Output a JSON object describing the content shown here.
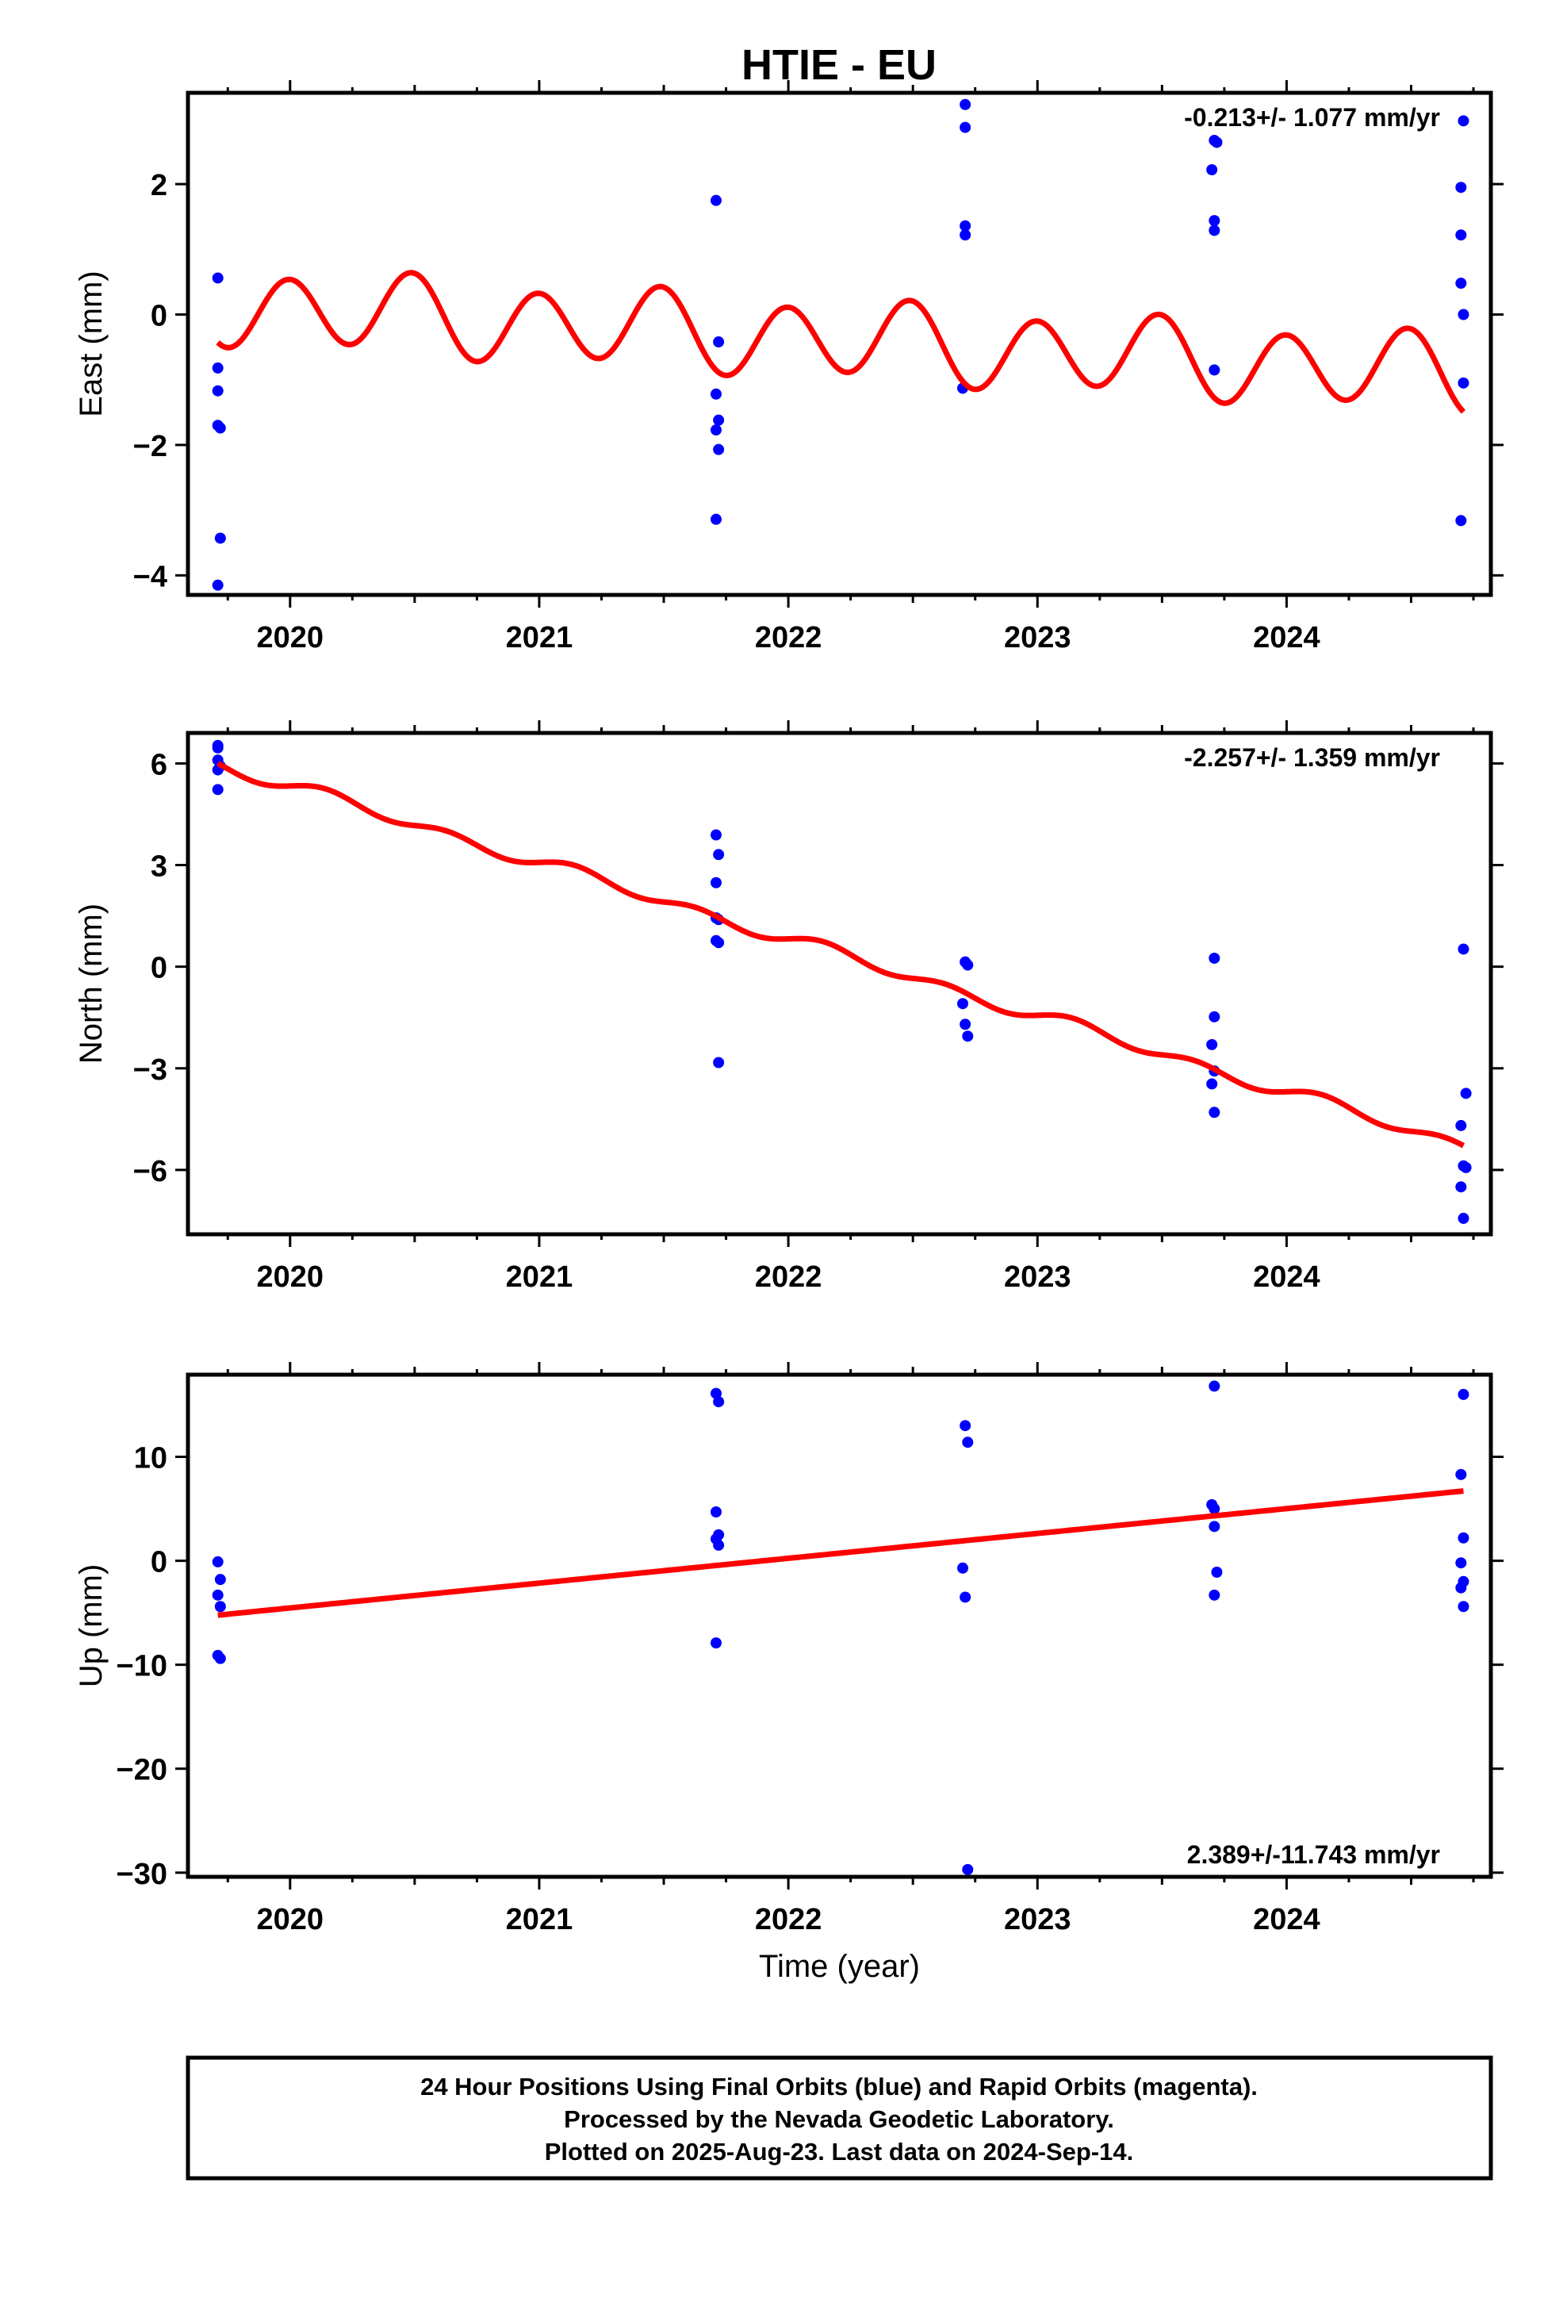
{
  "title": "HTIE - EU",
  "colors": {
    "points": "#0000ff",
    "fit": "#ff0000",
    "frame": "#000000"
  },
  "footer": {
    "lines": [
      "24 Hour Positions Using Final Orbits (blue) and Rapid Orbits (magenta).",
      "Processed by the Nevada Geodetic Laboratory.",
      "Plotted on 2025-Aug-23. Last data on 2024-Sep-14."
    ]
  },
  "chart_data": [
    {
      "type": "scatter",
      "name": "east",
      "ylabel": "East (mm)",
      "xlabel": "",
      "xlim": [
        2019.59,
        2024.82
      ],
      "ylim": [
        -4.3,
        3.4
      ],
      "xticks": [
        2020,
        2021,
        2022,
        2023,
        2024
      ],
      "yticks": [
        -4,
        -2,
        0,
        2
      ],
      "ytick_labels": [
        "−4",
        "−2",
        "0",
        "2"
      ],
      "rate_label": "-0.213+/- 1.077 mm/yr",
      "points": [
        [
          2019.71,
          0.56
        ],
        [
          2019.71,
          -0.82
        ],
        [
          2019.71,
          -1.17
        ],
        [
          2019.71,
          -1.7
        ],
        [
          2019.72,
          -1.74
        ],
        [
          2019.72,
          -3.43
        ],
        [
          2019.71,
          -4.15
        ],
        [
          2021.71,
          1.75
        ],
        [
          2021.72,
          -0.42
        ],
        [
          2021.71,
          -1.22
        ],
        [
          2021.72,
          -1.62
        ],
        [
          2021.71,
          -1.77
        ],
        [
          2021.72,
          -2.07
        ],
        [
          2021.71,
          -3.14
        ],
        [
          2022.71,
          3.22
        ],
        [
          2022.71,
          2.87
        ],
        [
          2022.71,
          1.36
        ],
        [
          2022.71,
          1.22
        ],
        [
          2022.7,
          -1.13
        ],
        [
          2023.71,
          2.67
        ],
        [
          2023.72,
          2.64
        ],
        [
          2023.7,
          2.22
        ],
        [
          2023.71,
          1.44
        ],
        [
          2023.71,
          1.29
        ],
        [
          2023.71,
          -0.85
        ],
        [
          2024.71,
          2.97
        ],
        [
          2024.7,
          1.95
        ],
        [
          2024.7,
          1.22
        ],
        [
          2024.7,
          0.48
        ],
        [
          2024.71,
          0.0
        ],
        [
          2024.71,
          -1.05
        ],
        [
          2024.7,
          -3.16
        ]
      ],
      "fit": {
        "x_start": 2019.71,
        "x_end": 2024.71,
        "intercept": 0.14,
        "slope": -0.213,
        "h1_sin": 0.08,
        "h1_cos": -0.1,
        "h2_sin": -0.05,
        "h2_cos": 0.56
      }
    },
    {
      "type": "scatter",
      "name": "north",
      "ylabel": "North (mm)",
      "xlabel": "",
      "xlim": [
        2019.59,
        2024.82
      ],
      "ylim": [
        -7.9,
        6.9
      ],
      "xticks": [
        2020,
        2021,
        2022,
        2023,
        2024
      ],
      "yticks": [
        -6,
        -3,
        0,
        3,
        6
      ],
      "ytick_labels": [
        "−6",
        "−3",
        "0",
        "3",
        "6"
      ],
      "rate_label": "-2.257+/- 1.359 mm/yr",
      "points": [
        [
          2019.71,
          6.53
        ],
        [
          2019.71,
          6.46
        ],
        [
          2019.71,
          6.1
        ],
        [
          2019.72,
          5.92
        ],
        [
          2019.71,
          5.81
        ],
        [
          2019.71,
          5.23
        ],
        [
          2021.71,
          3.89
        ],
        [
          2021.72,
          3.31
        ],
        [
          2021.71,
          2.48
        ],
        [
          2021.71,
          1.44
        ],
        [
          2021.72,
          1.39
        ],
        [
          2021.71,
          0.77
        ],
        [
          2021.72,
          0.71
        ],
        [
          2021.72,
          -2.83
        ],
        [
          2022.71,
          0.14
        ],
        [
          2022.72,
          0.05
        ],
        [
          2022.7,
          -1.09
        ],
        [
          2022.71,
          -1.7
        ],
        [
          2022.72,
          -2.05
        ],
        [
          2023.71,
          0.25
        ],
        [
          2023.71,
          -1.48
        ],
        [
          2023.7,
          -2.3
        ],
        [
          2023.71,
          -3.08
        ],
        [
          2023.7,
          -3.46
        ],
        [
          2023.71,
          -4.3
        ],
        [
          2024.71,
          0.52
        ],
        [
          2024.72,
          -3.74
        ],
        [
          2024.7,
          -4.69
        ],
        [
          2024.71,
          -5.88
        ],
        [
          2024.72,
          -5.93
        ],
        [
          2024.7,
          -6.5
        ],
        [
          2024.71,
          -7.43
        ]
      ],
      "fit": {
        "x_start": 2019.71,
        "x_end": 2024.71,
        "intercept": 5.99,
        "slope": -2.257,
        "h1_sin": 0.08,
        "h1_cos": 0.02,
        "h2_sin": 0.16,
        "h2_cos": -0.02
      }
    },
    {
      "type": "scatter",
      "name": "up",
      "ylabel": "Up (mm)",
      "xlabel": "Time (year)",
      "xlim": [
        2019.59,
        2024.82
      ],
      "ylim": [
        -30.4,
        17.9
      ],
      "xticks": [
        2020,
        2021,
        2022,
        2023,
        2024
      ],
      "yticks": [
        -30,
        -20,
        -10,
        0,
        10
      ],
      "ytick_labels": [
        "−30",
        "−20",
        "−10",
        "0",
        "10"
      ],
      "rate_label": "2.389+/-11.743 mm/yr",
      "points": [
        [
          2019.71,
          -0.1
        ],
        [
          2019.72,
          -1.8
        ],
        [
          2019.71,
          -3.3
        ],
        [
          2019.72,
          -4.4
        ],
        [
          2019.71,
          -9.1
        ],
        [
          2019.72,
          -9.4
        ],
        [
          2021.71,
          16.1
        ],
        [
          2021.72,
          15.3
        ],
        [
          2021.71,
          4.7
        ],
        [
          2021.72,
          2.5
        ],
        [
          2021.71,
          2.1
        ],
        [
          2021.72,
          1.5
        ],
        [
          2021.71,
          -7.9
        ],
        [
          2022.71,
          13.0
        ],
        [
          2022.72,
          11.4
        ],
        [
          2022.7,
          -0.7
        ],
        [
          2022.71,
          -3.5
        ],
        [
          2022.72,
          -29.7
        ],
        [
          2023.71,
          16.8
        ],
        [
          2023.7,
          5.4
        ],
        [
          2023.71,
          5.0
        ],
        [
          2023.71,
          3.3
        ],
        [
          2023.72,
          -1.1
        ],
        [
          2023.71,
          -3.3
        ],
        [
          2024.71,
          16.0
        ],
        [
          2024.7,
          8.3
        ],
        [
          2024.71,
          2.2
        ],
        [
          2024.7,
          -0.2
        ],
        [
          2024.71,
          -2.0
        ],
        [
          2024.7,
          -2.6
        ],
        [
          2024.71,
          -4.4
        ]
      ],
      "fit": {
        "x_start": 2019.71,
        "x_end": 2024.71,
        "intercept": -5.23,
        "slope": 2.389,
        "h1_sin": 0,
        "h1_cos": 0,
        "h2_sin": 0,
        "h2_cos": 0
      }
    }
  ]
}
